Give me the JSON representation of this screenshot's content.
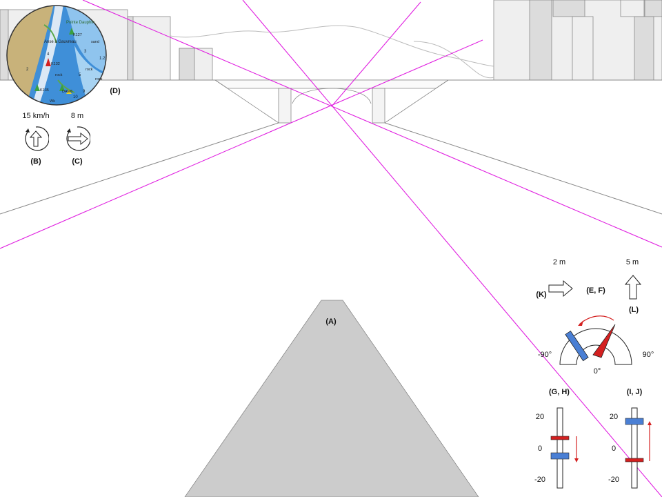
{
  "labels": {
    "hull": "(A)",
    "speed_dial": "(B)",
    "distance_dial": "(C)",
    "chart_map": "(D)",
    "gauge": "(E, F)",
    "slider_left": "(G, H)",
    "slider_right": "(I, J)",
    "lateral_arrow": "(K)",
    "forward_arrow": "(L)"
  },
  "readouts": {
    "speed": "15 km/h",
    "distance": "8 m",
    "lateral": "2 m",
    "forward": "5 m"
  },
  "gauge": {
    "left": "-90°",
    "right": "90°",
    "center": "0°"
  },
  "slider_left": {
    "top": "20",
    "mid": "0",
    "bottom": "-20"
  },
  "slider_right": {
    "top": "20",
    "mid": "0",
    "bottom": "-20"
  },
  "map": {
    "place_name": "Pointe Dauphin",
    "place_name_2": "Anse à Gauvreau",
    "markers": [
      "K127",
      "K132",
      "K135",
      "DAM6"
    ],
    "words": [
      "sand",
      "rock",
      "rock",
      "rock",
      "Wk"
    ],
    "depths": [
      "3",
      "4",
      "1.2",
      "2",
      "5",
      "10",
      "9"
    ]
  },
  "colors": {
    "guide_line": "#e020e0",
    "hull": "#cccccc",
    "blue_marker": "#4a7fd4",
    "red_marker": "#d42020",
    "red_arrow": "#d42020"
  },
  "icons": [
    "up-arrow-icon",
    "right-arrow-icon",
    "rotate-icon"
  ]
}
